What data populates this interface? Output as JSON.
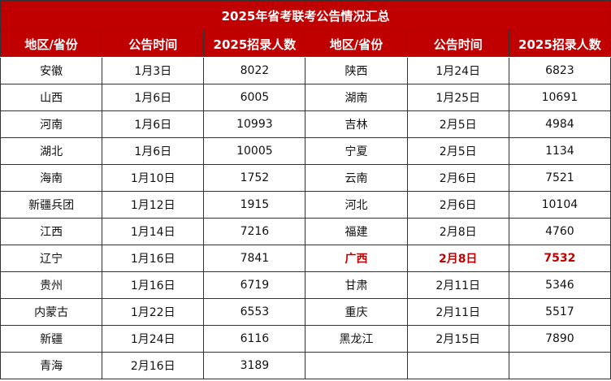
{
  "title": "2025年省考联考公告情况汇总",
  "headers": [
    "地区/省份",
    "公告时间",
    "2025招录人数",
    "地区/省份",
    "公告时间",
    "2025招录人数"
  ],
  "highlight_color": "#c00000",
  "left": [
    [
      "安徽",
      "1月3日",
      "8022"
    ],
    [
      "山西",
      "1月6日",
      "6005"
    ],
    [
      "河南",
      "1月6日",
      "10993"
    ],
    [
      "湖北",
      "1月6日",
      "10005"
    ],
    [
      "海南",
      "1月10日",
      "1752"
    ],
    [
      "新疆兵团",
      "1月12日",
      "1915"
    ],
    [
      "江西",
      "1月14日",
      "7216"
    ],
    [
      "辽宁",
      "1月16日",
      "7841"
    ],
    [
      "贵州",
      "1月16日",
      "6719"
    ],
    [
      "内蒙古",
      "1月22日",
      "6553"
    ],
    [
      "新疆",
      "1月24日",
      "6116"
    ],
    [
      "青海",
      "2月16日",
      "3189"
    ]
  ],
  "right": [
    [
      "陕西",
      "1月24日",
      "6823"
    ],
    [
      "湖南",
      "1月25日",
      "10691"
    ],
    [
      "吉林",
      "2月5日",
      "4984"
    ],
    [
      "宁夏",
      "2月5日",
      "1134"
    ],
    [
      "云南",
      "2月6日",
      "7521"
    ],
    [
      "河北",
      "2月6日",
      "10104"
    ],
    [
      "福建",
      "2月8日",
      "4760"
    ],
    [
      "广西",
      "2月8日",
      "7532"
    ],
    [
      "甘肃",
      "2月11日",
      "5346"
    ],
    [
      "重庆",
      "2月11日",
      "5517"
    ],
    [
      "黑龙江",
      "2月15日",
      "7890"
    ],
    [
      "",
      "",
      ""
    ]
  ],
  "highlighted_right_row": 7
}
